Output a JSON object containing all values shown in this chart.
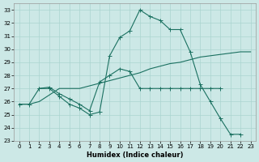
{
  "xlabel": "Humidex (Indice chaleur)",
  "bg_color": "#cce8e6",
  "grid_color": "#aad4d0",
  "line_color": "#1a7060",
  "xlim": [
    -0.5,
    23.5
  ],
  "ylim": [
    23,
    33.5
  ],
  "yticks": [
    23,
    24,
    25,
    26,
    27,
    28,
    29,
    30,
    31,
    32,
    33
  ],
  "xticks": [
    0,
    1,
    2,
    3,
    4,
    5,
    6,
    7,
    8,
    9,
    10,
    11,
    12,
    13,
    14,
    15,
    16,
    17,
    18,
    19,
    20,
    21,
    22,
    23
  ],
  "curve1_x": [
    0,
    1,
    2,
    3,
    4,
    5,
    6,
    7,
    8,
    9,
    10,
    11,
    12,
    13,
    14,
    15,
    16,
    17,
    18,
    19,
    20,
    21,
    22
  ],
  "curve1_y": [
    25.8,
    25.8,
    27.0,
    27.0,
    26.4,
    25.8,
    25.5,
    25.0,
    25.2,
    29.5,
    30.9,
    31.4,
    33.0,
    32.5,
    32.2,
    31.5,
    31.5,
    29.8,
    27.3,
    26.0,
    24.7,
    23.5,
    23.5
  ],
  "curve2_x": [
    2,
    3,
    4,
    5,
    6,
    7,
    8,
    9,
    10,
    11,
    12,
    13,
    14,
    15,
    16,
    17,
    18,
    19,
    20
  ],
  "curve2_y": [
    27.0,
    27.1,
    26.6,
    26.2,
    25.8,
    25.3,
    27.5,
    28.0,
    28.5,
    28.3,
    27.0,
    27.0,
    27.0,
    27.0,
    27.0,
    27.0,
    27.0,
    27.0,
    27.0
  ],
  "curve3_x": [
    0,
    1,
    2,
    3,
    4,
    5,
    6,
    7,
    8,
    9,
    10,
    11,
    12,
    13,
    14,
    15,
    16,
    17,
    18,
    19,
    20,
    21,
    22,
    23
  ],
  "curve3_y": [
    25.8,
    25.8,
    26.0,
    26.5,
    27.0,
    27.0,
    27.0,
    27.2,
    27.4,
    27.6,
    27.8,
    28.0,
    28.2,
    28.5,
    28.7,
    28.9,
    29.0,
    29.2,
    29.4,
    29.5,
    29.6,
    29.7,
    29.8,
    29.8
  ]
}
